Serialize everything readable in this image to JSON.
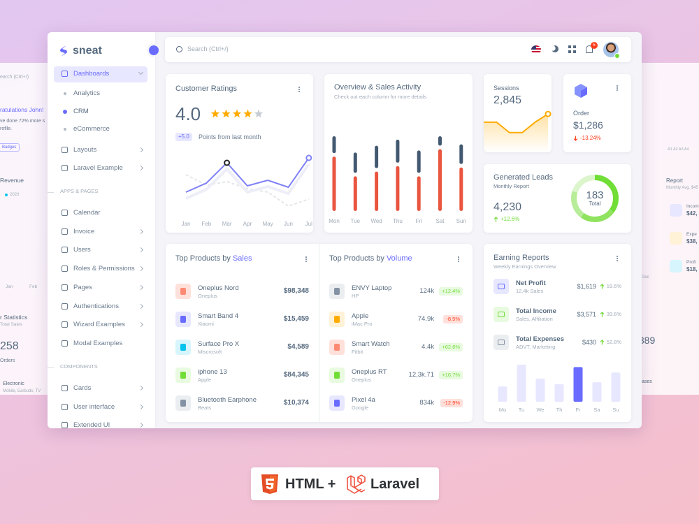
{
  "sidebar": {
    "brand": "sneat",
    "dashboards": "Dashboards",
    "dashboard_pages": [
      "Analytics",
      "CRM",
      "eCommerce"
    ],
    "menu": [
      "Layouts",
      "Laravel Example"
    ],
    "apps_header": "APPS & PAGES",
    "apps": [
      "Calendar",
      "Invoice",
      "Users",
      "Roles & Permissions",
      "Pages",
      "Authentications",
      "Wizard Examples",
      "Modal Examples"
    ],
    "components_header": "COMPONENTS",
    "components": [
      "Cards",
      "User interface",
      "Extended UI"
    ]
  },
  "topbar": {
    "search": "Search (Ctrl+/)",
    "notifications": "5"
  },
  "ratings": {
    "title": "Customer Ratings",
    "score": "4.0",
    "stars": 4,
    "max_stars": 5,
    "change": "+5.0",
    "change_text": "Points from last month",
    "chart": {
      "type": "line",
      "categories": [
        "Jan",
        "Feb",
        "Mar",
        "Apr",
        "May",
        "Jun",
        "Jul"
      ],
      "series": [
        {
          "color": "#7f81f5",
          "values": [
            31,
            44,
            73,
            40,
            48,
            38,
            80
          ]
        },
        {
          "color": "#e4e6ea",
          "values": [
            56,
            41,
            46,
            36,
            31,
            11,
            21
          ]
        }
      ],
      "ylim": [
        0,
        90
      ]
    }
  },
  "overview": {
    "title": "Overview & Sales Activity",
    "subtitle": "Check out each column for more details",
    "chart": {
      "type": "bar",
      "categories": [
        "Mon",
        "Tue",
        "Wed",
        "Thu",
        "Fri",
        "Sat",
        "Sun"
      ],
      "series": [
        {
          "color": "#e9553f",
          "values": [
            80,
            51,
            58,
            66,
            51,
            91,
            64
          ]
        },
        {
          "color": "#435971",
          "values": [
            30,
            35,
            38,
            39,
            38,
            19,
            34
          ]
        }
      ],
      "ylim": [
        0,
        110
      ]
    }
  },
  "sessions": {
    "title": "Sessions",
    "value": "2,845",
    "chart": {
      "type": "line",
      "values": [
        46,
        46,
        27,
        27,
        46,
        61
      ],
      "color": "#ffab00",
      "ylim": [
        0,
        70
      ]
    }
  },
  "order": {
    "title": "Order",
    "value": "$1,286",
    "change": "-13.24%"
  },
  "leads": {
    "title": "Generated Leads",
    "subtitle": "Monthly Report",
    "value": "4,230",
    "change": "+12.6%",
    "chart": {
      "type": "pie",
      "values": [
        35,
        25,
        20,
        20
      ],
      "colors": [
        "#71dd37",
        "#8fe35f",
        "#b7ec98",
        "#dcf5cc"
      ],
      "center_value": "183",
      "center_label": "Total"
    }
  },
  "top_sales": {
    "title": "Top Products by ",
    "title_highlight": "Sales",
    "rows": [
      {
        "name": "Oneplus Nord",
        "brand": "Oneplus",
        "value": "$98,348"
      },
      {
        "name": "Smart Band 4",
        "brand": "Xiaomi",
        "value": "$15,459"
      },
      {
        "name": "Surface Pro X",
        "brand": "Miscrosoft",
        "value": "$4,589"
      },
      {
        "name": "iphone 13",
        "brand": "Apple",
        "value": "$84,345"
      },
      {
        "name": "Bluetooth Earphone",
        "brand": "Beats",
        "value": "$10,374"
      }
    ]
  },
  "top_volume": {
    "title": "Top Products by ",
    "title_highlight": "Volume",
    "rows": [
      {
        "name": "ENVY Laptop",
        "brand": "HP",
        "value": "124k",
        "change": "+12.4%"
      },
      {
        "name": "Apple",
        "brand": "iMac Pro",
        "value": "74.9k",
        "change": "-8.5%"
      },
      {
        "name": "Smart Watch",
        "brand": "Fitbit",
        "value": "4.4k",
        "change": "+62.6%"
      },
      {
        "name": "Oneplus RT",
        "brand": "Oneplus",
        "value": "12,3k.71",
        "change": "+16.7%"
      },
      {
        "name": "Pixel 4a",
        "brand": "Google",
        "value": "834k",
        "change": "-12.9%"
      }
    ]
  },
  "earnings": {
    "title": "Earning Reports",
    "subtitle": "Weekly Earnings Overview",
    "items": [
      {
        "name": "Net Profit",
        "detail": "12.4k Sales",
        "value": "$1,619",
        "change": "18.6%"
      },
      {
        "name": "Total Income",
        "detail": "Sales, Affiliation",
        "value": "$3,571",
        "change": "39.6%"
      },
      {
        "name": "Total Expenses",
        "detail": "ADVT, Marketing",
        "value": "$430",
        "change": "52.8%"
      }
    ],
    "chart": {
      "type": "bar",
      "categories": [
        "Mo",
        "Tu",
        "We",
        "Th",
        "Fr",
        "Sa",
        "Su"
      ],
      "values": [
        33,
        80,
        50,
        38,
        75,
        42,
        63
      ],
      "color": "#e7e7ff",
      "highlight_color": "#696cff",
      "ylim": [
        0,
        80
      ]
    }
  },
  "background": {
    "left": {
      "search": "earch (Ctrl+/)",
      "greeting": "ratulations John!",
      "message": "ve done 72% more s",
      "message_end": "rofile.",
      "badge": "Badges",
      "revenue": "Revenue",
      "year": "2020",
      "months": [
        "Jan",
        "Feb"
      ],
      "statistics": "r Statistics",
      "total_sales": "Total Sales",
      "orders_value": "258",
      "orders_label": "Orders",
      "category": "Electronic",
      "category_detail": "Mobile, Earbuds, TV"
    },
    "right": {
      "report": "Report",
      "report_detail": "Monthly Avg. $45",
      "items": [
        "Incom",
        "Expe",
        "Profi"
      ],
      "amounts": [
        "$42,",
        "$38,",
        "$18,"
      ],
      "axis": "A1  A2  A3  A4",
      "month": "Dec",
      "value": ",389",
      "label": "ases"
    }
  },
  "footer": {
    "html": "HTML +",
    "laravel": "Laravel"
  }
}
